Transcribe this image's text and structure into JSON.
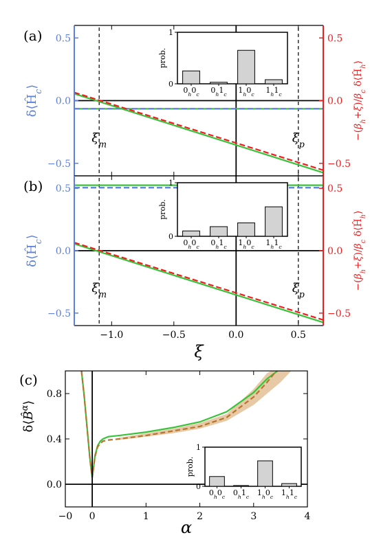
{
  "colors": {
    "blue": "#5b7fde",
    "red": "#ee1c1c",
    "green": "#39c23a",
    "brown": "#b5752c",
    "band": "#e8c9a6",
    "bar": "#d3d3d3"
  },
  "chart_data": [
    {
      "type": "line",
      "panel_label": "(a)",
      "xlim": [
        -1.3,
        0.7
      ],
      "ylim": [
        -0.6,
        0.6
      ],
      "left_ylabel": "δ⟨Ĥc⟩",
      "right_ylabel": "−(βh+ξ)/βc δ⟨Ĥh⟩",
      "left_ticks": [
        "−0.5",
        "0.0",
        "0.5"
      ],
      "right_ticks": [
        "−0.5",
        "0.0",
        "0.5"
      ],
      "x_ticks": [],
      "vlines": [
        {
          "x": -1.1,
          "label": "ξm"
        },
        {
          "x": 0.5,
          "label": "ξp"
        }
      ],
      "series": [
        {
          "color": "green",
          "style": "solid",
          "x": [
            -1.3,
            0.7
          ],
          "y": [
            -0.065,
            -0.065
          ]
        },
        {
          "color": "blue",
          "style": "dashed",
          "x": [
            -1.3,
            0.7
          ],
          "y": [
            -0.065,
            -0.065
          ]
        },
        {
          "color": "green",
          "style": "solid",
          "x": [
            -1.3,
            0.7
          ],
          "y": [
            0.055,
            -0.575
          ]
        },
        {
          "color": "red",
          "style": "dashed",
          "x": [
            -1.3,
            0.7
          ],
          "y": [
            0.065,
            -0.555
          ]
        }
      ],
      "inset": {
        "type": "bar",
        "ylabel": "prob.",
        "ylim": [
          0,
          1
        ],
        "yticks": [
          "0",
          "1"
        ],
        "categories": [
          "0h0c",
          "0h1c",
          "1h0c",
          "1h1c"
        ],
        "values": [
          0.25,
          0.03,
          0.65,
          0.08
        ]
      }
    },
    {
      "type": "line",
      "panel_label": "(b)",
      "xlim": [
        -1.3,
        0.7
      ],
      "ylim": [
        -0.6,
        0.6
      ],
      "xlabel": "ξ",
      "left_ylabel": "δ⟨Ĥc⟩",
      "right_ylabel": "−(βh+ξ)/βc δ⟨Ĥh⟩",
      "left_ticks": [
        "−0.5",
        "0.0",
        "0.5"
      ],
      "right_ticks": [
        "−0.5",
        "0.0",
        "0.5"
      ],
      "x_ticks": [
        "−1.0",
        "−0.5",
        "0.0",
        "0.5"
      ],
      "vlines": [
        {
          "x": -1.1,
          "label": "ξm"
        },
        {
          "x": 0.5,
          "label": "ξp"
        }
      ],
      "series": [
        {
          "color": "green",
          "style": "solid",
          "x": [
            -1.3,
            0.7
          ],
          "y": [
            0.525,
            0.525
          ]
        },
        {
          "color": "blue",
          "style": "dashed",
          "x": [
            -1.3,
            0.7
          ],
          "y": [
            0.505,
            0.505
          ]
        },
        {
          "color": "green",
          "style": "solid",
          "x": [
            -1.3,
            0.7
          ],
          "y": [
            0.055,
            -0.575
          ]
        },
        {
          "color": "red",
          "style": "dashed",
          "x": [
            -1.3,
            0.7
          ],
          "y": [
            0.065,
            -0.555
          ]
        }
      ],
      "inset": {
        "type": "bar",
        "ylabel": "prob.",
        "ylim": [
          0,
          1
        ],
        "yticks": [
          "0",
          "1"
        ],
        "categories": [
          "0h0c",
          "0h1c",
          "1h0c",
          "1h1c"
        ],
        "values": [
          0.1,
          0.18,
          0.25,
          0.55
        ]
      }
    },
    {
      "type": "line",
      "panel_label": "(c)",
      "xlim": [
        -0.5,
        4.0
      ],
      "ylim": [
        -0.2,
        1.0
      ],
      "xlabel": "α",
      "ylabel": "δ⟨B̂α⟩",
      "y_ticks": [
        "0.0",
        "0.4",
        "0.8"
      ],
      "x_ticks": [
        "−0",
        "0",
        "1",
        "2",
        "3",
        "4"
      ],
      "series": [
        {
          "color": "green",
          "style": "solid",
          "x": [
            -0.2,
            -0.15,
            -0.1,
            -0.05,
            -0.02,
            0.0,
            0.02,
            0.05,
            0.1,
            0.15,
            0.2,
            0.3,
            0.5,
            1.0,
            1.5,
            2.0,
            2.5,
            3.0,
            3.25,
            3.5
          ],
          "y": [
            1.0,
            0.78,
            0.52,
            0.26,
            0.13,
            0.06,
            0.13,
            0.25,
            0.34,
            0.38,
            0.4,
            0.42,
            0.43,
            0.46,
            0.5,
            0.55,
            0.64,
            0.81,
            0.93,
            1.02
          ]
        },
        {
          "color": "brown",
          "style": "dashed",
          "x": [
            -0.2,
            -0.15,
            -0.1,
            -0.05,
            -0.02,
            0.0,
            0.02,
            0.05,
            0.1,
            0.15,
            0.2,
            0.3,
            0.5,
            1.0,
            1.5,
            2.0,
            2.5,
            3.0,
            3.25,
            3.42
          ],
          "y": [
            1.0,
            0.78,
            0.52,
            0.26,
            0.13,
            0.06,
            0.13,
            0.24,
            0.33,
            0.36,
            0.38,
            0.39,
            0.4,
            0.43,
            0.47,
            0.51,
            0.59,
            0.77,
            0.9,
            1.0
          ],
          "band": {
            "x": [
              0.5,
              1.0,
              1.5,
              2.0,
              2.5,
              3.0,
              3.25,
              3.5,
              3.7
            ],
            "lower": [
              0.39,
              0.42,
              0.45,
              0.49,
              0.56,
              0.7,
              0.8,
              0.9,
              1.0
            ],
            "upper": [
              0.41,
              0.45,
              0.49,
              0.54,
              0.62,
              0.84,
              0.98,
              1.05,
              1.05
            ]
          }
        }
      ],
      "inset": {
        "type": "bar",
        "ylabel": "prob.",
        "ylim": [
          0,
          1
        ],
        "yticks": [
          "0",
          "1"
        ],
        "categories": [
          "0h0c",
          "0h1c",
          "1h0c",
          "1h1c"
        ],
        "values": [
          0.25,
          0.02,
          0.65,
          0.07
        ]
      }
    }
  ]
}
